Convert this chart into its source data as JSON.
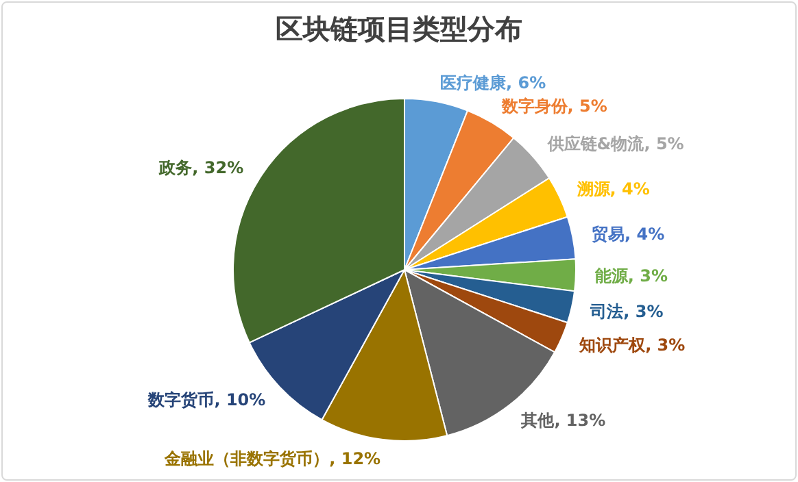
{
  "chart_data": {
    "type": "pie",
    "title": "区块链项目类型分布",
    "categories": [
      "医疗健康",
      "数字身份",
      "供应链&物流",
      "溯源",
      "贸易",
      "能源",
      "司法",
      "知识产权",
      "其他",
      "金融业（非数字货币）",
      "数字货币",
      "政务"
    ],
    "values": [
      6,
      5,
      5,
      4,
      4,
      3,
      3,
      3,
      13,
      12,
      10,
      32
    ],
    "value_labels": [
      "6%",
      "5%",
      "5%",
      "4%",
      "4%",
      "3%",
      "3%",
      "3%",
      "13%",
      "12%",
      "10%",
      "32%"
    ],
    "colors": [
      "#5b9bd5",
      "#ed7d31",
      "#a5a5a5",
      "#ffc000",
      "#4472c4",
      "#70ad47",
      "#255e91",
      "#9e480e",
      "#636363",
      "#997300",
      "#264478",
      "#43682b"
    ]
  }
}
